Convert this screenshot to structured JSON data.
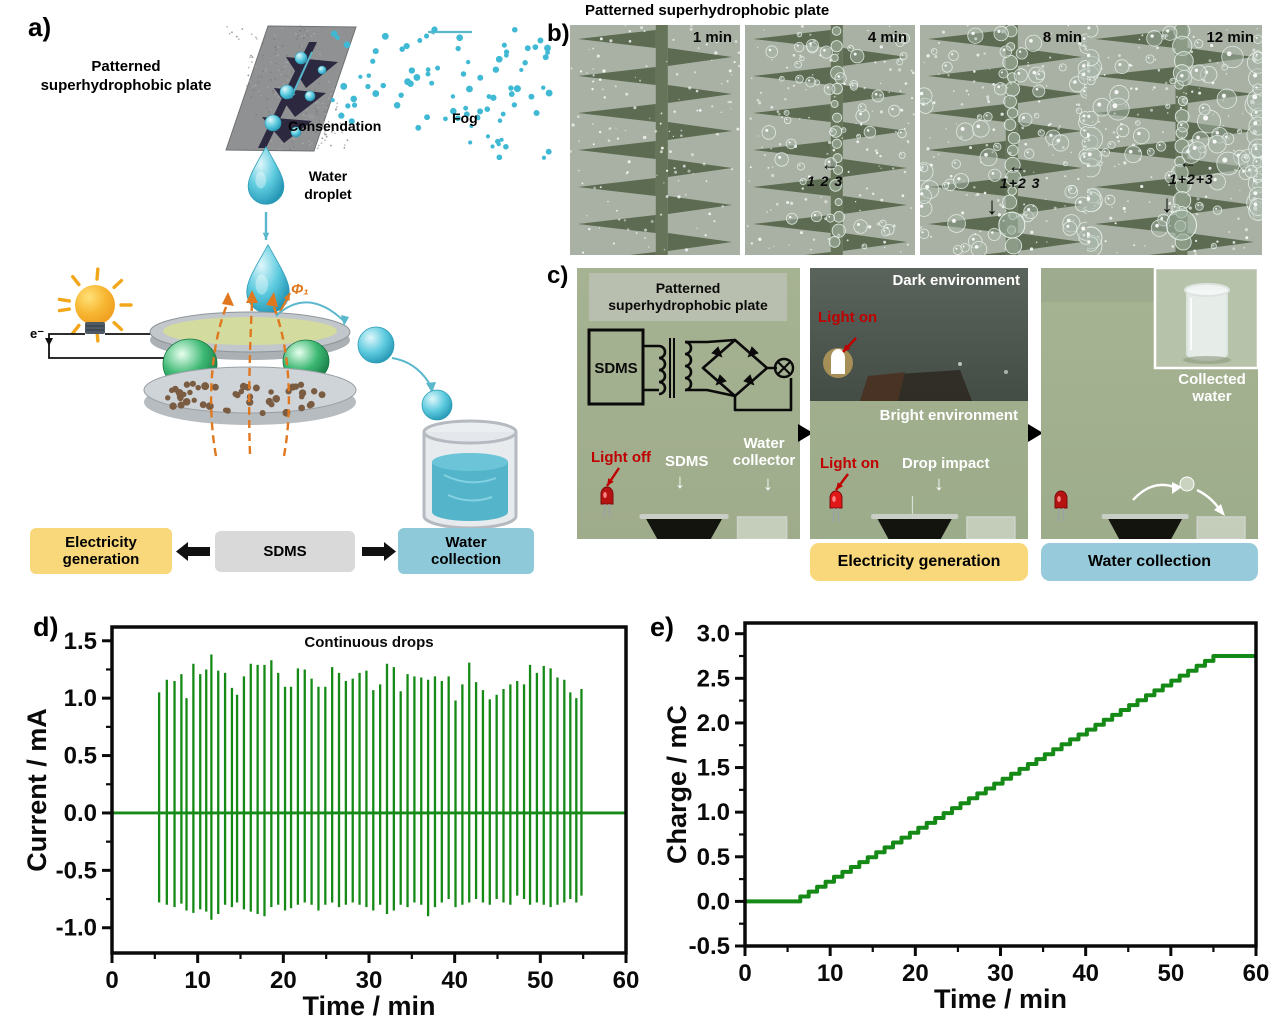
{
  "panel_a": {
    "label": "a)",
    "plate_label": "Patterned\nsuperhydrophobic plate",
    "condensation_label": "Consendation",
    "fog_label": "Fog",
    "water_droplet_label": "Water\ndroplet",
    "electron_label": "e⁻",
    "flux_label": "Φ₁",
    "flow_boxes": {
      "left": {
        "text": "Electricity\ngeneration",
        "color": "#f9d87b"
      },
      "center": {
        "text": "SDMS",
        "color": "#d9d9d9"
      },
      "right": {
        "text": "Water\ncollection",
        "color": "#8ec9d9"
      }
    },
    "accent_colors": {
      "droplet_cyan": "#49c3d8",
      "field_orange": "#e07820",
      "bulb_yellow": "#f5a623"
    }
  },
  "panel_b": {
    "label": "b)",
    "title": "Patterned superhydrophobic plate",
    "frames": [
      {
        "time": "1 min",
        "annotation": "",
        "arrow_left": false,
        "arrow_down": false,
        "droplet_level": 0
      },
      {
        "time": "4 min",
        "annotation": "1  2  3",
        "arrow_left": true,
        "arrow_down": false,
        "droplet_level": 1
      },
      {
        "time": "8 min",
        "annotation": "1+2  3",
        "arrow_left": true,
        "arrow_down": true,
        "droplet_level": 2
      },
      {
        "time": "12 min",
        "annotation": "1+2+3",
        "arrow_left": true,
        "arrow_down": true,
        "droplet_level": 3
      }
    ]
  },
  "panel_c": {
    "label": "c)",
    "photo1": {
      "plate_label": "Patterned\nsuperhydrophobic plate",
      "circuit_box_label": "SDMS",
      "light_label": "Light off",
      "device_label": "SDMS",
      "collector_label": "Water collector"
    },
    "photo2": {
      "dark_label": "Dark environment",
      "light_on_dark": "Light on",
      "bright_label": "Bright environment",
      "light_on": "Light on",
      "impact_label": "Drop impact"
    },
    "photo3": {
      "inset_label": "Collected\nwater"
    },
    "boxes": {
      "electricity": {
        "text": "Electricity generation",
        "color": "#f9d87b"
      },
      "water": {
        "text": "Water collection",
        "color": "#97cbdb"
      }
    }
  },
  "chart_data": [
    {
      "id": "d",
      "panel_label": "d)",
      "type": "line",
      "title": "Continuous drops",
      "xlabel": "Time / min",
      "ylabel": "Current / mA",
      "xlim": [
        0,
        60
      ],
      "ylim": [
        -1.22,
        1.62
      ],
      "xticks": [
        0,
        10,
        20,
        30,
        40,
        50,
        60
      ],
      "minor_xticks": [
        5,
        15,
        25,
        35,
        45,
        55
      ],
      "yticks": [
        {
          "v": 1.5,
          "t": "1.5"
        },
        {
          "v": 1.0,
          "t": "1.0"
        },
        {
          "v": 0.5,
          "t": "0.5"
        },
        {
          "v": 0.0,
          "t": "0.0"
        },
        {
          "v": -0.5,
          "t": "-0.5"
        },
        {
          "v": -1.0,
          "t": "-1.0"
        }
      ],
      "minor_yticks": [
        1.25,
        0.75,
        0.25,
        -0.25,
        -0.75
      ],
      "line_color": "#168a16",
      "grid": false,
      "baseline": 0.0,
      "series_description": "Transient current spikes from continuous water drops, active ~5.5-55 min, baseline 0 elsewhere",
      "spikes": [
        [
          5.5,
          1.05,
          -0.78
        ],
        [
          6.4,
          1.16,
          -0.8
        ],
        [
          7.3,
          1.15,
          -0.82
        ],
        [
          8.1,
          1.21,
          -0.79
        ],
        [
          8.7,
          1.0,
          -0.85
        ],
        [
          9.5,
          1.3,
          -0.87
        ],
        [
          10.3,
          1.21,
          -0.84
        ],
        [
          11.0,
          1.25,
          -0.86
        ],
        [
          11.6,
          1.38,
          -0.93
        ],
        [
          12.4,
          1.24,
          -0.88
        ],
        [
          13.2,
          1.22,
          -0.8
        ],
        [
          14.0,
          1.09,
          -0.82
        ],
        [
          14.6,
          1.03,
          -0.78
        ],
        [
          15.4,
          1.19,
          -0.84
        ],
        [
          16.2,
          1.3,
          -0.86
        ],
        [
          17.0,
          1.29,
          -0.88
        ],
        [
          17.8,
          1.29,
          -0.9
        ],
        [
          18.6,
          1.33,
          -0.82
        ],
        [
          19.4,
          1.22,
          -0.8
        ],
        [
          20.2,
          1.1,
          -0.85
        ],
        [
          20.9,
          1.1,
          -0.83
        ],
        [
          21.7,
          1.26,
          -0.8
        ],
        [
          22.5,
          1.25,
          -0.78
        ],
        [
          23.3,
          1.17,
          -0.8
        ],
        [
          24.1,
          1.1,
          -0.85
        ],
        [
          24.9,
          1.1,
          -0.8
        ],
        [
          25.7,
          1.27,
          -0.78
        ],
        [
          26.5,
          1.22,
          -0.82
        ],
        [
          27.3,
          1.15,
          -0.8
        ],
        [
          28.1,
          1.17,
          -0.78
        ],
        [
          28.9,
          1.22,
          -0.8
        ],
        [
          29.7,
          1.24,
          -0.82
        ],
        [
          30.5,
          1.07,
          -0.85
        ],
        [
          31.3,
          1.12,
          -0.8
        ],
        [
          32.1,
          1.3,
          -0.88
        ],
        [
          32.9,
          1.27,
          -0.85
        ],
        [
          33.7,
          1.06,
          -0.8
        ],
        [
          34.5,
          1.21,
          -0.82
        ],
        [
          35.3,
          1.19,
          -0.78
        ],
        [
          36.1,
          1.18,
          -0.8
        ],
        [
          36.9,
          1.16,
          -0.9
        ],
        [
          37.7,
          1.19,
          -0.82
        ],
        [
          38.5,
          1.15,
          -0.78
        ],
        [
          39.3,
          1.19,
          -0.75
        ],
        [
          40.1,
          0.98,
          -0.82
        ],
        [
          40.9,
          1.12,
          -0.8
        ],
        [
          41.7,
          1.31,
          -0.78
        ],
        [
          42.5,
          1.14,
          -0.75
        ],
        [
          43.3,
          1.07,
          -0.78
        ],
        [
          44.1,
          0.99,
          -0.8
        ],
        [
          44.9,
          1.03,
          -0.75
        ],
        [
          45.7,
          1.08,
          -0.78
        ],
        [
          46.5,
          1.12,
          -0.8
        ],
        [
          47.3,
          1.15,
          -0.72
        ],
        [
          48.1,
          1.12,
          -0.75
        ],
        [
          48.8,
          1.29,
          -0.8
        ],
        [
          49.6,
          1.22,
          -0.78
        ],
        [
          50.4,
          1.28,
          -0.8
        ],
        [
          51.2,
          1.26,
          -0.82
        ],
        [
          52.0,
          1.18,
          -0.8
        ],
        [
          52.8,
          1.16,
          -0.78
        ],
        [
          53.5,
          1.05,
          -0.75
        ],
        [
          54.2,
          1.0,
          -0.78
        ],
        [
          54.8,
          1.08,
          -0.72
        ]
      ]
    },
    {
      "id": "e",
      "panel_label": "e)",
      "type": "line",
      "title": "",
      "xlabel": "Time / min",
      "ylabel": "Charge / mC",
      "xlim": [
        0,
        60
      ],
      "ylim": [
        -0.5,
        3.12
      ],
      "xticks": [
        0,
        10,
        20,
        30,
        40,
        50,
        60
      ],
      "minor_xticks": [
        5,
        15,
        25,
        35,
        45,
        55
      ],
      "yticks": [
        {
          "v": 3.0,
          "t": "3.0"
        },
        {
          "v": 2.5,
          "t": "2.5"
        },
        {
          "v": 2.0,
          "t": "2.0"
        },
        {
          "v": 1.5,
          "t": "1.5"
        },
        {
          "v": 1.0,
          "t": "1.0"
        },
        {
          "v": 0.5,
          "t": "0.5"
        },
        {
          "v": 0.0,
          "t": "0.0"
        },
        {
          "v": -0.5,
          "t": "-0.5"
        }
      ],
      "minor_yticks": [
        2.75,
        2.25,
        1.75,
        1.25,
        0.75,
        0.25,
        -0.25
      ],
      "line_color": "#168a16",
      "grid": false,
      "series_description": "Accumulated charge staircase: 0 mC until ~5.5 min, stepwise rise to 2.75 mC at ~55 min, flat after",
      "staircase": {
        "flat_start_t": 0,
        "rise_start_t": 5.5,
        "rise_end_t": 55,
        "q_start": 0.0,
        "q_end": 2.75,
        "steps": 50,
        "flat_end_t": 60
      }
    }
  ]
}
